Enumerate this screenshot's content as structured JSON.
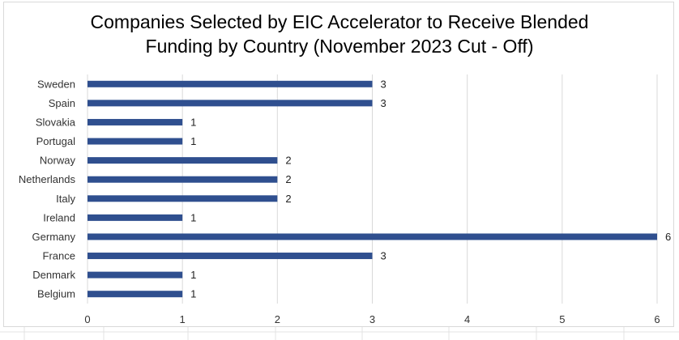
{
  "chart_data": {
    "type": "bar",
    "orientation": "horizontal",
    "title_lines": [
      "Companies Selected by EIC Accelerator to Receive Blended",
      "Funding by Country (November 2023 Cut - Off)"
    ],
    "categories": [
      "Sweden",
      "Spain",
      "Slovakia",
      "Portugal",
      "Norway",
      "Netherlands",
      "Italy",
      "Ireland",
      "Germany",
      "France",
      "Denmark",
      "Belgium"
    ],
    "values": [
      3,
      3,
      1,
      1,
      2,
      2,
      2,
      1,
      6,
      3,
      1,
      1
    ],
    "xlim": [
      0,
      6
    ],
    "xticks": [
      0,
      1,
      2,
      3,
      4,
      5,
      6
    ],
    "grid": true,
    "data_labels": true,
    "bar_color": "#2f4f8f"
  }
}
